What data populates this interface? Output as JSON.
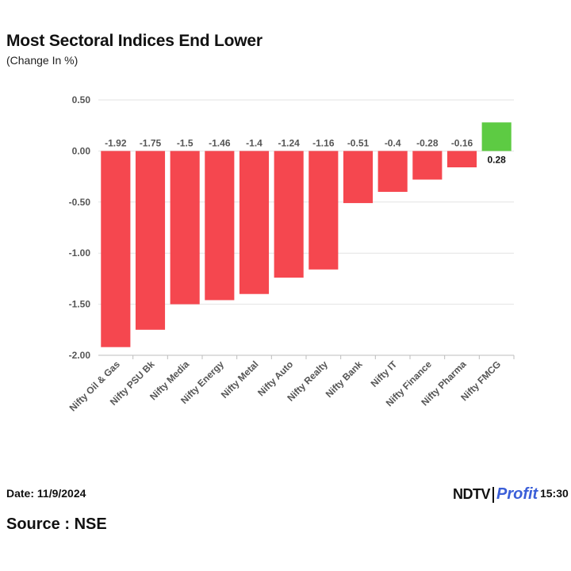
{
  "chart_data": {
    "type": "bar",
    "title": "Most Sectoral Indices End Lower",
    "subtitle": "(Change In %)",
    "xlabel": "",
    "ylabel": "",
    "ylim": [
      -2.0,
      0.5
    ],
    "yticks": [
      0.5,
      0.0,
      -0.5,
      -1.0,
      -1.5,
      -2.0
    ],
    "ytick_labels": [
      "0.50",
      "0.00",
      "-0.50",
      "-1.00",
      "-1.50",
      "-2.00"
    ],
    "grid": true,
    "categories": [
      "Nifty Oil & Gas",
      "Nifty PSU Bk",
      "Nifty Media",
      "Nifty Energy",
      "Nifty Metal",
      "Nifty Auto",
      "Nifty Realty",
      "Nifty Bank",
      "Nifty IT",
      "Nifty Finance",
      "Nifty Pharma",
      "Nifty FMCG"
    ],
    "values": [
      -1.92,
      -1.75,
      -1.5,
      -1.46,
      -1.4,
      -1.24,
      -1.16,
      -0.51,
      -0.4,
      -0.28,
      -0.16,
      0.28
    ],
    "value_labels": [
      "-1.92",
      "-1.75",
      "-1.5",
      "-1.46",
      "-1.4",
      "-1.24",
      "-1.16",
      "-0.51",
      "-0.4",
      "-0.28",
      "-0.16",
      "0.28"
    ],
    "colors": {
      "negative": "#f5474f",
      "positive": "#5dcb43"
    }
  },
  "footer": {
    "date": "Date: 11/9/2024",
    "time": "Time: 15:30",
    "source": "Source : NSE",
    "logo_primary": "NDTV",
    "logo_secondary": "Profit"
  }
}
